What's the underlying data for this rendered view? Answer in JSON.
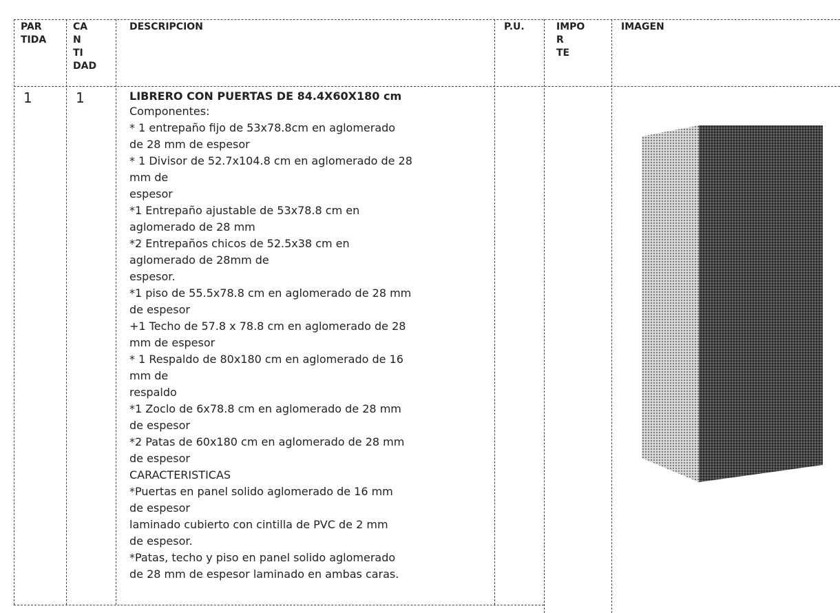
{
  "table": {
    "headers": [
      [
        "PAR",
        "TIDA"
      ],
      [
        "CA",
        "N",
        "TI",
        "DAD"
      ],
      [
        "DESCRIPCION"
      ],
      [
        "P.U."
      ],
      [
        "IMPO",
        "R",
        "TE"
      ],
      [
        "IMAGEN"
      ]
    ],
    "rows": [
      {
        "partida": "1",
        "cantidad": "1",
        "title": "LIBRERO CON PUERTAS DE 84.4X60X180 cm",
        "lines": [
          "Componentes:",
          "* 1 entrepaño fijo de 53x78.8cm en aglomerado",
          "de 28 mm de espesor",
          "* 1 Divisor de 52.7x104.8 cm en aglomerado de 28",
          "mm de",
          "espesor",
          "*1 Entrepaño ajustable de 53x78.8 cm en",
          "aglomerado de 28 mm",
          "*2 Entrepaños chicos de 52.5x38 cm en",
          "aglomerado de 28mm de",
          "espesor.",
          "*1 piso de 55.5x78.8 cm en aglomerado de 28 mm",
          "de espesor",
          "+1 Techo de 57.8 x 78.8 cm en aglomerado de 28",
          "mm de espesor",
          "* 1 Respaldo de 80x180 cm en aglomerado de 16",
          "mm de",
          "respaldo",
          "*1 Zoclo de 6x78.8 cm en aglomerado de 28 mm",
          "de espesor",
          "*2 Patas de 60x180 cm en aglomerado de 28 mm",
          "de espesor",
          "CARACTERISTICAS",
          "*Puertas en panel solido aglomerado de 16 mm",
          "de espesor",
          "laminado cubierto con cintilla de PVC de 2 mm",
          "de espesor.",
          "*Patas, techo y piso en panel solido aglomerado",
          "de 28 mm de espesor laminado en ambas caras."
        ]
      }
    ]
  }
}
